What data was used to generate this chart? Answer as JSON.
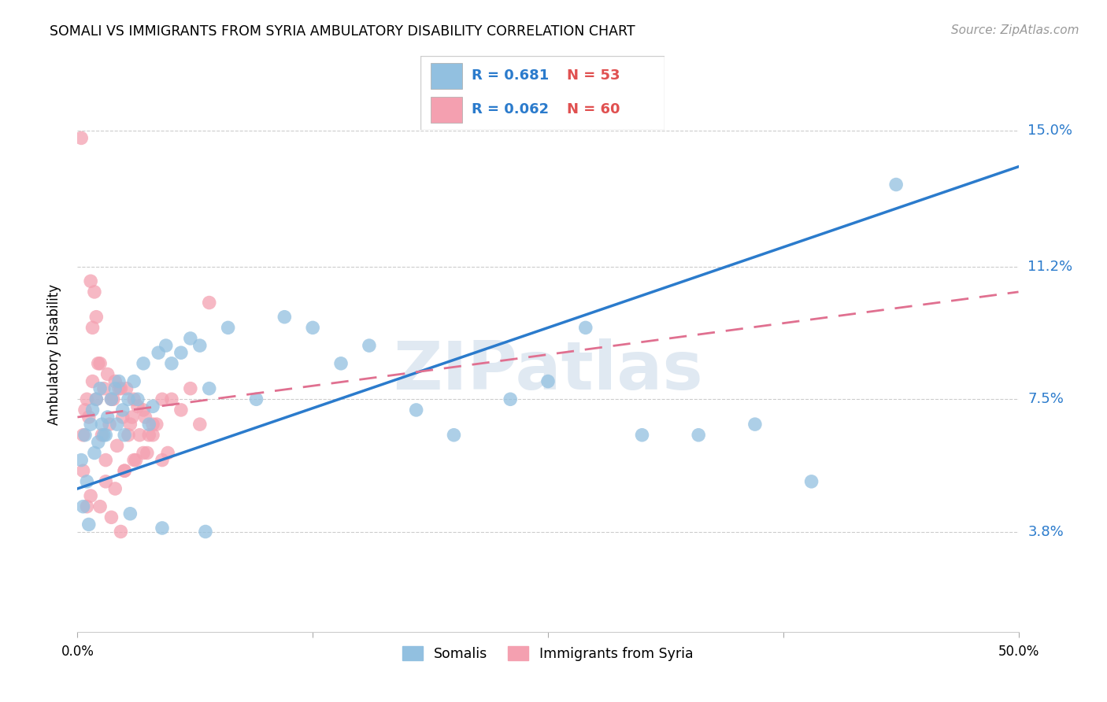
{
  "title": "SOMALI VS IMMIGRANTS FROM SYRIA AMBULATORY DISABILITY CORRELATION CHART",
  "source": "Source: ZipAtlas.com",
  "ylabel": "Ambulatory Disability",
  "yticks": [
    3.8,
    7.5,
    11.2,
    15.0
  ],
  "ytick_labels": [
    "3.8%",
    "7.5%",
    "11.2%",
    "15.0%"
  ],
  "xmin": 0.0,
  "xmax": 50.0,
  "ymin": 1.0,
  "ymax": 16.5,
  "legend_label1": "Somalis",
  "legend_label2": "Immigrants from Syria",
  "R1": 0.681,
  "N1": 53,
  "R2": 0.062,
  "N2": 60,
  "color_blue": "#92C0E0",
  "color_pink": "#F4A0B0",
  "trendline_blue": "#2B7BCC",
  "trendline_pink": "#E07090",
  "blue_trend_x0": 0.0,
  "blue_trend_y0": 5.0,
  "blue_trend_x1": 50.0,
  "blue_trend_y1": 14.0,
  "pink_trend_x0": 0.0,
  "pink_trend_y0": 7.0,
  "pink_trend_x1": 50.0,
  "pink_trend_y1": 10.5,
  "somali_x": [
    0.2,
    0.4,
    0.5,
    0.7,
    0.8,
    0.9,
    1.0,
    1.1,
    1.2,
    1.3,
    1.5,
    1.6,
    1.8,
    2.0,
    2.1,
    2.2,
    2.4,
    2.5,
    2.7,
    3.0,
    3.2,
    3.5,
    3.8,
    4.0,
    4.3,
    4.7,
    5.0,
    5.5,
    6.0,
    6.5,
    7.0,
    8.0,
    9.5,
    11.0,
    12.5,
    14.0,
    15.5,
    18.0,
    20.0,
    23.0,
    25.0,
    27.0,
    30.0,
    33.0,
    36.0,
    39.0,
    0.3,
    0.6,
    1.4,
    2.8,
    4.5,
    6.8,
    43.5
  ],
  "somali_y": [
    5.8,
    6.5,
    5.2,
    6.8,
    7.2,
    6.0,
    7.5,
    6.3,
    7.8,
    6.8,
    6.5,
    7.0,
    7.5,
    7.8,
    6.8,
    8.0,
    7.2,
    6.5,
    7.5,
    8.0,
    7.5,
    8.5,
    6.8,
    7.3,
    8.8,
    9.0,
    8.5,
    8.8,
    9.2,
    9.0,
    7.8,
    9.5,
    7.5,
    9.8,
    9.5,
    8.5,
    9.0,
    7.2,
    6.5,
    7.5,
    8.0,
    9.5,
    6.5,
    6.5,
    6.8,
    5.2,
    4.5,
    4.0,
    6.5,
    4.3,
    3.9,
    3.8,
    13.5
  ],
  "syria_x": [
    0.2,
    0.3,
    0.4,
    0.5,
    0.6,
    0.7,
    0.8,
    0.9,
    1.0,
    1.0,
    1.1,
    1.2,
    1.3,
    1.4,
    1.5,
    1.6,
    1.7,
    1.8,
    1.9,
    2.0,
    2.1,
    2.2,
    2.3,
    2.4,
    2.5,
    2.6,
    2.7,
    2.8,
    2.9,
    3.0,
    3.1,
    3.2,
    3.3,
    3.5,
    3.6,
    3.7,
    3.8,
    4.0,
    4.2,
    4.5,
    4.8,
    5.0,
    5.5,
    6.0,
    6.5,
    7.0,
    0.3,
    0.8,
    1.5,
    2.0,
    2.5,
    3.0,
    3.5,
    4.0,
    4.5,
    1.2,
    0.5,
    0.7,
    1.8,
    2.3
  ],
  "syria_y": [
    14.8,
    6.5,
    7.2,
    7.5,
    7.0,
    10.8,
    9.5,
    10.5,
    9.8,
    7.5,
    8.5,
    8.5,
    6.5,
    7.8,
    5.8,
    8.2,
    6.8,
    7.5,
    7.5,
    8.0,
    6.2,
    7.8,
    7.8,
    7.0,
    5.5,
    7.8,
    6.5,
    6.8,
    7.0,
    7.5,
    5.8,
    7.3,
    6.5,
    7.2,
    7.0,
    6.0,
    6.5,
    6.8,
    6.8,
    7.5,
    6.0,
    7.5,
    7.2,
    7.8,
    6.8,
    10.2,
    5.5,
    8.0,
    5.2,
    5.0,
    5.5,
    5.8,
    6.0,
    6.5,
    5.8,
    4.5,
    4.5,
    4.8,
    4.2,
    3.8
  ]
}
